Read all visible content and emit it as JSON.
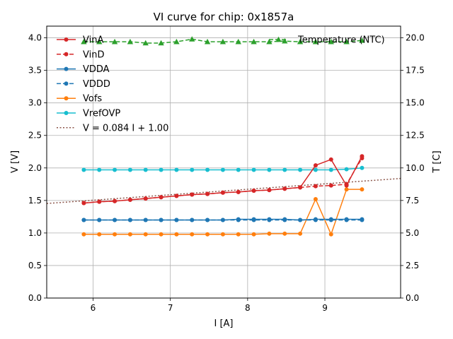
{
  "chart_data": {
    "type": "line",
    "title": "VI curve for chip: 0x1857a",
    "xlabel": "I [A]",
    "ylabel": "V [V]",
    "y2label": "T [C]",
    "xlim": [
      5.4,
      9.98
    ],
    "ylim": [
      0.0,
      4.18
    ],
    "y2lim": [
      0.0,
      20.9
    ],
    "xticks": [
      6,
      7,
      8,
      9
    ],
    "yticks": [
      0.0,
      0.5,
      1.0,
      1.5,
      2.0,
      2.5,
      3.0,
      3.5,
      4.0
    ],
    "y2ticks": [
      0.0,
      2.5,
      5.0,
      7.5,
      10.0,
      12.5,
      15.0,
      17.5,
      20.0
    ],
    "grid": true,
    "legend_position": "upper-left",
    "legend2_position": "upper-right",
    "x": [
      5.88,
      6.08,
      6.28,
      6.48,
      6.68,
      6.88,
      7.08,
      7.28,
      7.48,
      7.68,
      7.88,
      8.08,
      8.28,
      8.48,
      8.68,
      8.88,
      9.08,
      9.28,
      9.48
    ],
    "series": [
      {
        "name": "VinA",
        "color": "#d62728",
        "style": "solid",
        "marker": "circle",
        "axis": "left",
        "values": [
          1.46,
          1.48,
          1.49,
          1.51,
          1.53,
          1.55,
          1.57,
          1.59,
          1.6,
          1.62,
          1.63,
          1.65,
          1.66,
          1.68,
          1.7,
          2.04,
          2.13,
          1.73,
          2.18
        ]
      },
      {
        "name": "VinD",
        "color": "#d62728",
        "style": "dashed",
        "marker": "circle",
        "axis": "left",
        "values": [
          1.46,
          1.48,
          1.49,
          1.51,
          1.53,
          1.55,
          1.57,
          1.59,
          1.6,
          1.62,
          1.63,
          1.65,
          1.66,
          1.68,
          1.7,
          1.72,
          1.73,
          1.75,
          2.15
        ]
      },
      {
        "name": "VDDA",
        "color": "#1f77b4",
        "style": "solid",
        "marker": "circle",
        "axis": "left",
        "values": [
          1.2,
          1.2,
          1.2,
          1.2,
          1.2,
          1.2,
          1.2,
          1.2,
          1.2,
          1.2,
          1.21,
          1.21,
          1.21,
          1.21,
          1.2,
          1.21,
          1.21,
          1.21,
          1.21
        ]
      },
      {
        "name": "VDDD",
        "color": "#1f77b4",
        "style": "dashed",
        "marker": "circle",
        "axis": "left",
        "values": [
          1.2,
          1.2,
          1.2,
          1.2,
          1.2,
          1.2,
          1.2,
          1.2,
          1.2,
          1.2,
          1.2,
          1.2,
          1.2,
          1.2,
          1.2,
          1.2,
          1.2,
          1.2,
          1.2
        ]
      },
      {
        "name": "Vofs",
        "color": "#ff7f0e",
        "style": "solid",
        "marker": "circle",
        "axis": "left",
        "values": [
          0.98,
          0.98,
          0.98,
          0.98,
          0.98,
          0.98,
          0.98,
          0.98,
          0.98,
          0.98,
          0.98,
          0.98,
          0.99,
          0.99,
          0.99,
          1.52,
          0.98,
          1.67,
          1.67
        ]
      },
      {
        "name": "VrefOVP",
        "color": "#17becf",
        "style": "solid",
        "marker": "circle",
        "axis": "left",
        "values": [
          1.97,
          1.97,
          1.97,
          1.97,
          1.97,
          1.97,
          1.97,
          1.97,
          1.97,
          1.97,
          1.97,
          1.97,
          1.97,
          1.97,
          1.97,
          1.97,
          1.97,
          1.98,
          2.0
        ]
      },
      {
        "name": "Temperature (NTC)",
        "color": "#2ca02c",
        "style": "dashed",
        "marker": "triangle",
        "axis": "right",
        "values": [
          19.7,
          19.7,
          19.7,
          19.7,
          19.6,
          19.6,
          19.7,
          19.9,
          19.7,
          19.7,
          19.7,
          19.7,
          19.7,
          19.75,
          19.7,
          19.7,
          19.7,
          19.7,
          19.8
        ]
      }
    ],
    "fit": {
      "name": "V = 0.084 I + 1.00",
      "slope": 0.084,
      "intercept": 1.0,
      "color": "#8c564b",
      "style": "dotted"
    }
  }
}
